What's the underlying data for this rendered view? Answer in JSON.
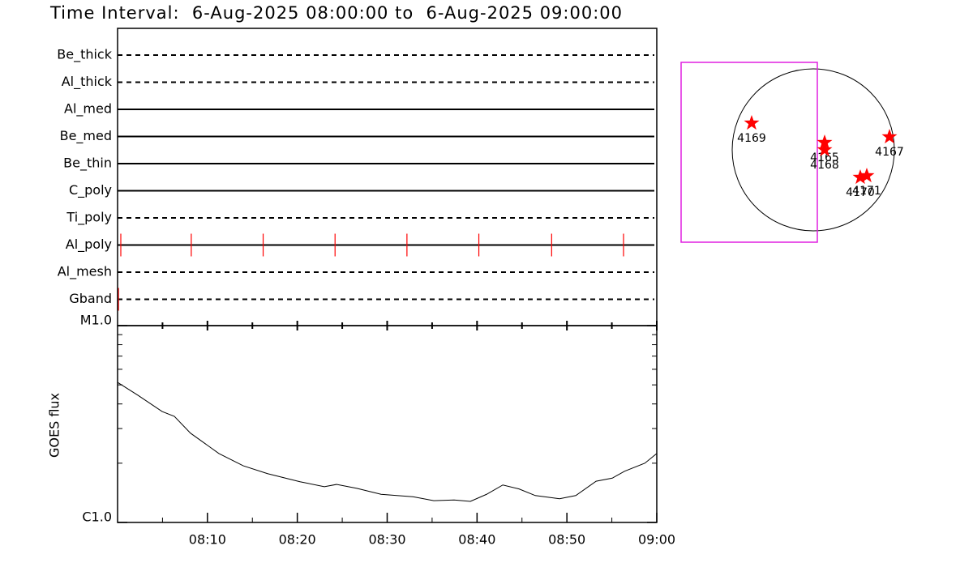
{
  "chart_data": [
    {
      "type": "timeline",
      "title": "Time Interval:  6-Aug-2025 08:00:00 to  6-Aug-2025 09:00:00",
      "categories": [
        "Be_thick",
        "Al_thick",
        "Al_med",
        "Be_med",
        "Be_thin",
        "C_poly",
        "Ti_poly",
        "Al_poly",
        "Al_mesh",
        "Gband"
      ],
      "line_styles": [
        "dashed",
        "dashed",
        "solid",
        "solid",
        "solid",
        "solid",
        "dashed",
        "solid",
        "dashed",
        "dashed"
      ],
      "observations": [
        [],
        [],
        [],
        [],
        [],
        [],
        [],
        [
          0.36,
          8.2,
          16.2,
          24.2,
          32.2,
          40.2,
          48.3,
          56.3
        ],
        [],
        [
          0.1
        ]
      ],
      "color": "#ff0000",
      "xlim": [
        0,
        60
      ]
    },
    {
      "type": "line",
      "ylabel": "GOES flux",
      "x": [
        0,
        2.26,
        4.96,
        6.32,
        8.12,
        11.28,
        13.99,
        16.69,
        20.3,
        23.01,
        24.36,
        26.62,
        29.32,
        32.93,
        35.19,
        37.45,
        39.26,
        41.06,
        42.87,
        44.67,
        46.48,
        49.18,
        50.99,
        53.25,
        55.05,
        56.41,
        58.67,
        60
      ],
      "values": [
        5.15e-06,
        4.43e-06,
        3.66e-06,
        3.46e-06,
        2.84e-06,
        2.24e-06,
        1.94e-06,
        1.77e-06,
        1.61e-06,
        1.52e-06,
        1.56e-06,
        1.49e-06,
        1.39e-06,
        1.35e-06,
        1.29e-06,
        1.3e-06,
        1.28e-06,
        1.39e-06,
        1.55e-06,
        1.48e-06,
        1.37e-06,
        1.32e-06,
        1.37e-06,
        1.62e-06,
        1.68e-06,
        1.82e-06,
        2e-06,
        2.24e-06
      ],
      "color": "#000000",
      "log_y": true,
      "xlim": [
        0,
        60
      ],
      "xticks": [
        {
          "value": 10,
          "label": "08:10"
        },
        {
          "value": 20,
          "label": "08:20"
        },
        {
          "value": 30,
          "label": "08:30"
        },
        {
          "value": 40,
          "label": "08:40"
        },
        {
          "value": 50,
          "label": "08:50"
        },
        {
          "value": 60,
          "label": "09:00"
        }
      ],
      "xminor_ticks": [
        5,
        15,
        25,
        35,
        45,
        55
      ],
      "ylim": [
        1e-06,
        1e-05
      ],
      "yticks": [
        {
          "value": 1e-06,
          "label": "C1.0"
        },
        {
          "value": 1e-05,
          "label": "M1.0"
        }
      ],
      "yminor_ticks": [
        2e-06,
        3e-06,
        4e-06,
        5e-06,
        6e-06,
        7e-06,
        8e-06,
        9e-06
      ]
    },
    {
      "type": "map",
      "disk_radius": 1,
      "fov": {
        "x": [
          -1.63,
          0.05
        ],
        "y": [
          -1.14,
          1.08
        ],
        "color": "#e020e0"
      },
      "color": "#ff0000",
      "labels": [
        "4169",
        "4165",
        "4168",
        "4167",
        "4170",
        "4171"
      ],
      "x": [
        -0.76,
        0.14,
        0.14,
        0.94,
        0.58,
        0.66
      ],
      "y": [
        0.33,
        0.09,
        0.0,
        0.16,
        -0.34,
        -0.32
      ]
    }
  ]
}
